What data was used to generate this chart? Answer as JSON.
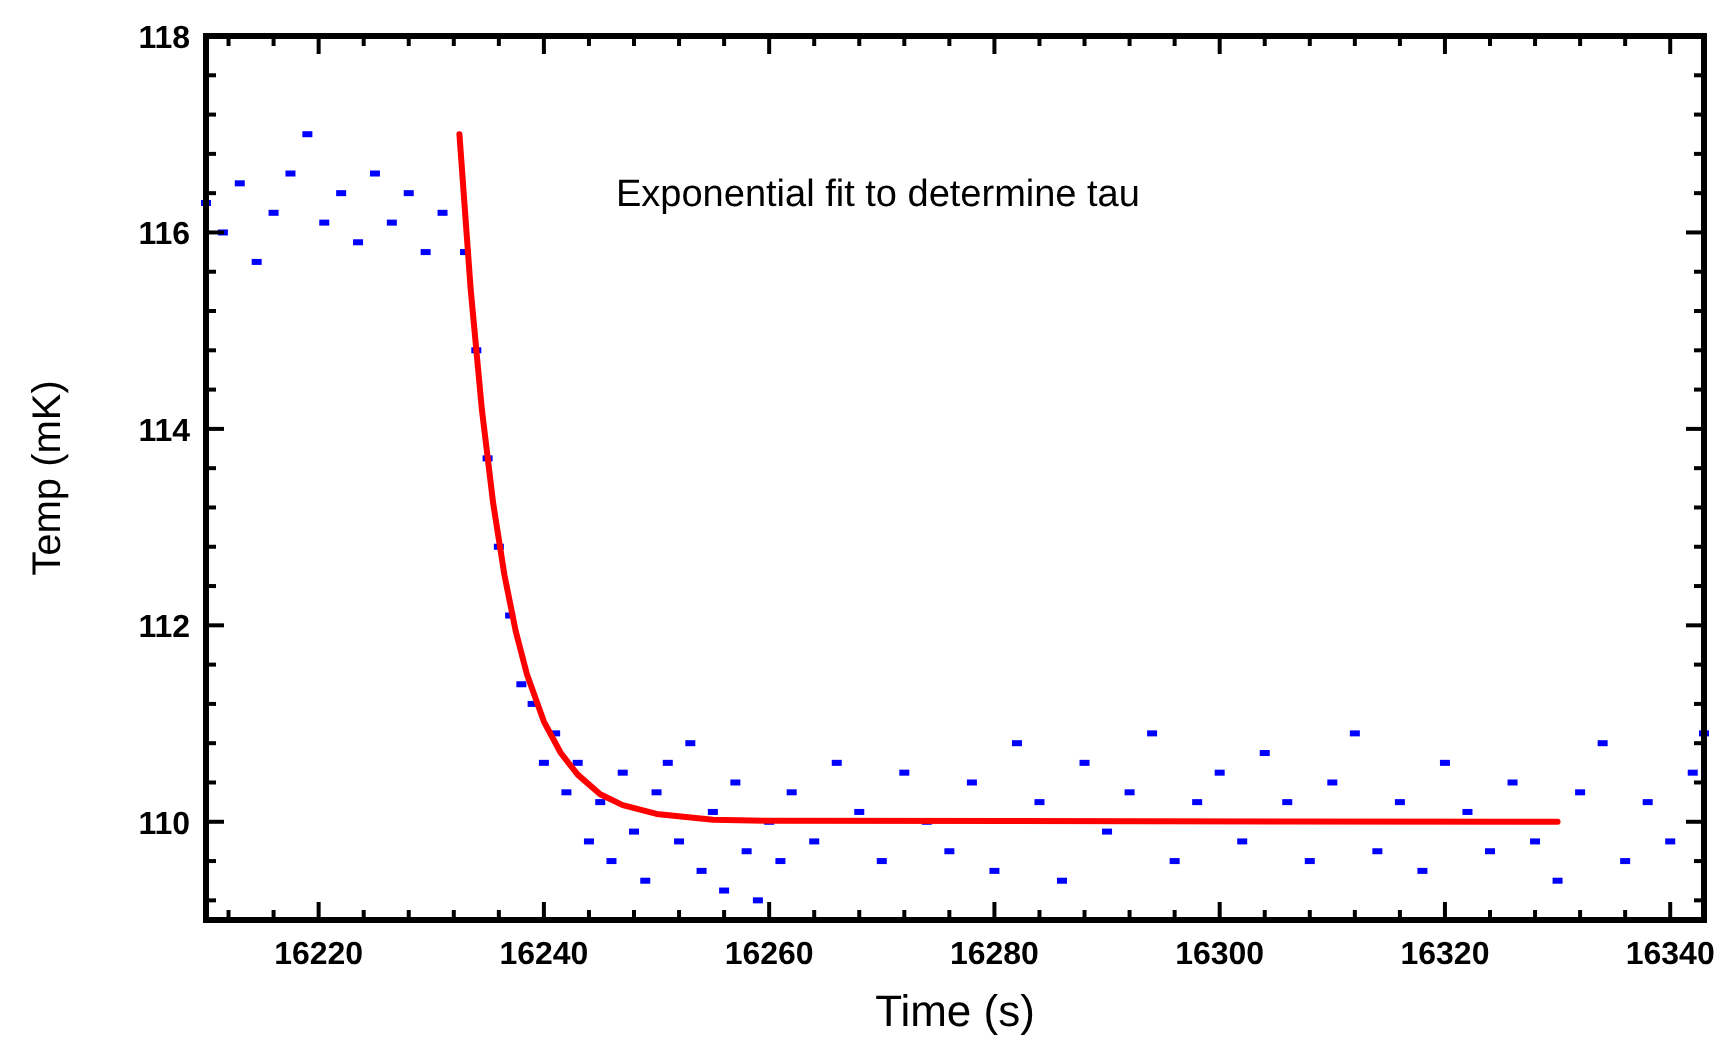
{
  "chart_data": {
    "type": "scatter",
    "xlabel": "Time (s)",
    "ylabel": "Temp (mK)",
    "annotations": [
      "Exponential fit to determine tau"
    ],
    "xlim": [
      16210,
      16343
    ],
    "ylim": [
      109,
      118
    ],
    "xticks": [
      {
        "value": 16212,
        "label": null
      },
      {
        "value": 16216,
        "label": null
      },
      16220,
      {
        "value": 16224,
        "label": null
      },
      {
        "value": 16228,
        "label": null
      },
      {
        "value": 16232,
        "label": null
      },
      {
        "value": 16236,
        "label": null
      },
      16240,
      {
        "value": 16244,
        "label": null
      },
      {
        "value": 16248,
        "label": null
      },
      {
        "value": 16252,
        "label": null
      },
      {
        "value": 16256,
        "label": null
      },
      16260,
      {
        "value": 16264,
        "label": null
      },
      {
        "value": 16268,
        "label": null
      },
      {
        "value": 16272,
        "label": null
      },
      {
        "value": 16276,
        "label": null
      },
      16280,
      {
        "value": 16284,
        "label": null
      },
      {
        "value": 16288,
        "label": null
      },
      {
        "value": 16292,
        "label": null
      },
      {
        "value": 16296,
        "label": null
      },
      16300,
      {
        "value": 16304,
        "label": null
      },
      {
        "value": 16308,
        "label": null
      },
      {
        "value": 16312,
        "label": null
      },
      {
        "value": 16316,
        "label": null
      },
      16320,
      {
        "value": 16324,
        "label": null
      },
      {
        "value": 16328,
        "label": null
      },
      {
        "value": 16332,
        "label": null
      },
      {
        "value": 16336,
        "label": null
      },
      16340
    ],
    "yticks": [
      {
        "value": 109.2,
        "label": null
      },
      {
        "value": 109.6,
        "label": null
      },
      110,
      {
        "value": 110.4,
        "label": null
      },
      {
        "value": 110.8,
        "label": null
      },
      {
        "value": 111.2,
        "label": null
      },
      {
        "value": 111.6,
        "label": null
      },
      112,
      {
        "value": 112.4,
        "label": null
      },
      {
        "value": 112.8,
        "label": null
      },
      {
        "value": 113.2,
        "label": null
      },
      {
        "value": 113.6,
        "label": null
      },
      114,
      {
        "value": 114.4,
        "label": null
      },
      {
        "value": 114.8,
        "label": null
      },
      {
        "value": 115.2,
        "label": null
      },
      {
        "value": 115.6,
        "label": null
      },
      116,
      {
        "value": 116.4,
        "label": null
      },
      {
        "value": 116.8,
        "label": null
      },
      {
        "value": 117.2,
        "label": null
      },
      {
        "value": 117.6,
        "label": null
      },
      118
    ],
    "grid": false,
    "series": [
      {
        "marker": "square",
        "color": "#0000ff",
        "x": [
          16210,
          16211.5,
          16213,
          16214.5,
          16216,
          16217.5,
          16219,
          16220.5,
          16222,
          16223.5,
          16225,
          16226.5,
          16228,
          16229.5,
          16231,
          16233,
          16234,
          16235,
          16236,
          16237,
          16238,
          16239,
          16240,
          16241,
          16242,
          16243,
          16244,
          16245,
          16246,
          16247,
          16248,
          16249,
          16250,
          16251,
          16252,
          16253,
          16254,
          16255,
          16256,
          16257,
          16258,
          16259,
          16260,
          16261,
          16262,
          16264,
          16266,
          16268,
          16270,
          16272,
          16274,
          16276,
          16278,
          16280,
          16282,
          16284,
          16286,
          16288,
          16290,
          16292,
          16294,
          16296,
          16298,
          16300,
          16302,
          16304,
          16306,
          16308,
          16310,
          16312,
          16314,
          16316,
          16318,
          16320,
          16322,
          16324,
          16326,
          16328,
          16330,
          16332,
          16334,
          16336,
          16338,
          16340,
          16342,
          16343
        ],
        "values": [
          116.3,
          116.0,
          116.5,
          115.7,
          116.2,
          116.6,
          117.0,
          116.1,
          116.4,
          115.9,
          116.6,
          116.1,
          116.4,
          115.8,
          116.2,
          115.8,
          114.8,
          113.7,
          112.8,
          112.1,
          111.4,
          111.2,
          110.6,
          110.9,
          110.3,
          110.6,
          109.8,
          110.2,
          109.6,
          110.5,
          109.9,
          109.4,
          110.3,
          110.6,
          109.8,
          110.8,
          109.5,
          110.1,
          109.3,
          110.4,
          109.7,
          109.2,
          110.0,
          109.6,
          110.3,
          109.8,
          110.6,
          110.1,
          109.6,
          110.5,
          110.0,
          109.7,
          110.4,
          109.5,
          110.8,
          110.2,
          109.4,
          110.6,
          109.9,
          110.3,
          110.9,
          109.6,
          110.2,
          110.5,
          109.8,
          110.7,
          110.2,
          109.6,
          110.4,
          110.9,
          109.7,
          110.2,
          109.5,
          110.6,
          110.1,
          109.7,
          110.4,
          109.8,
          109.4,
          110.3,
          110.8,
          109.6,
          110.2,
          109.8,
          110.5,
          110.9
        ]
      },
      {
        "type": "line",
        "marker": "none",
        "color": "#ff0000",
        "x": [
          16232.5,
          16233.5,
          16234.5,
          16235.5,
          16236.5,
          16237.5,
          16238.5,
          16240,
          16241.5,
          16243,
          16245,
          16247,
          16250,
          16255,
          16260,
          16330
        ],
        "values": [
          117.0,
          115.42,
          114.19,
          113.24,
          112.51,
          111.94,
          111.5,
          111.02,
          110.7,
          110.48,
          110.28,
          110.17,
          110.08,
          110.02,
          110.01,
          110.0
        ]
      }
    ]
  }
}
